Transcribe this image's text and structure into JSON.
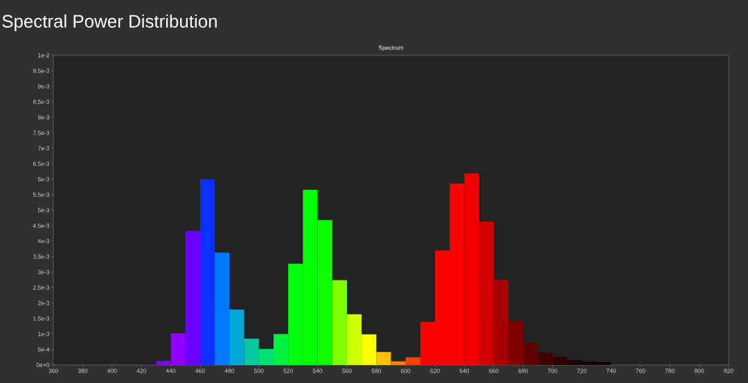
{
  "chart_data": {
    "type": "histogram",
    "title": "Spectral Power Distribution",
    "subtitle": "Spectrum",
    "bins": [
      420,
      430,
      440,
      450,
      460,
      470,
      480,
      490,
      500,
      510,
      520,
      530,
      540,
      550,
      560,
      570,
      580,
      590,
      600,
      610,
      620,
      630,
      640,
      650,
      660,
      670,
      680,
      690,
      700,
      710,
      720,
      730,
      740
    ],
    "values": [
      2e-05,
      0.00013,
      0.00103,
      0.00433,
      0.006,
      0.00363,
      0.00179,
      0.00085,
      0.00052,
      0.001,
      0.00327,
      0.00566,
      0.00468,
      0.00274,
      0.00164,
      0.00099,
      0.00042,
      0.00012,
      0.00025,
      0.00139,
      0.0037,
      0.00586,
      0.00619,
      0.00463,
      0.00275,
      0.00141,
      0.00072,
      0.0004,
      0.00026,
      0.00016,
      0.00011,
      9e-05
    ],
    "colors": [
      "#6a00a0",
      "#8000ff",
      "#9000ff",
      "#6a00ff",
      "#0a30ff",
      "#0078ff",
      "#00a8d8",
      "#00c8a0",
      "#00e070",
      "#00f040",
      "#00ff10",
      "#00ff00",
      "#10ff00",
      "#80ff00",
      "#d0ff00",
      "#ffff00",
      "#ffc000",
      "#ff8000",
      "#ff4000",
      "#ff0000",
      "#ff0000",
      "#ff0000",
      "#f00000",
      "#d00000",
      "#a80000",
      "#800000",
      "#600000",
      "#400000",
      "#300000",
      "#200000",
      "#180000",
      "#100000"
    ],
    "xlim": [
      360,
      820
    ],
    "xticks": [
      360,
      380,
      400,
      420,
      440,
      460,
      480,
      500,
      520,
      540,
      560,
      580,
      600,
      620,
      640,
      660,
      680,
      700,
      720,
      740,
      760,
      780,
      800,
      820
    ],
    "ylim": [
      0,
      0.01
    ],
    "yticks": [
      {
        "value": 0,
        "label": "0e+0"
      },
      {
        "value": 0.0005,
        "label": "5e-4"
      },
      {
        "value": 0.001,
        "label": "1e-3"
      },
      {
        "value": 0.0015,
        "label": "1.5e-3"
      },
      {
        "value": 0.002,
        "label": "2e-3"
      },
      {
        "value": 0.0025,
        "label": "2.5e-3"
      },
      {
        "value": 0.003,
        "label": "3e-3"
      },
      {
        "value": 0.0035,
        "label": "3.5e-3"
      },
      {
        "value": 0.004,
        "label": "4e-3"
      },
      {
        "value": 0.0045,
        "label": "4.5e-3"
      },
      {
        "value": 0.005,
        "label": "5e-3"
      },
      {
        "value": 0.0055,
        "label": "5.5e-3"
      },
      {
        "value": 0.006,
        "label": "6e-3"
      },
      {
        "value": 0.0065,
        "label": "6.5e-3"
      },
      {
        "value": 0.007,
        "label": "7e-3"
      },
      {
        "value": 0.0075,
        "label": "7.5e-3"
      },
      {
        "value": 0.008,
        "label": "8e-3"
      },
      {
        "value": 0.0085,
        "label": "8.5e-3"
      },
      {
        "value": 0.009,
        "label": "9e-3"
      },
      {
        "value": 0.0095,
        "label": "9.5e-3"
      },
      {
        "value": 0.01,
        "label": "1e-2"
      }
    ]
  }
}
